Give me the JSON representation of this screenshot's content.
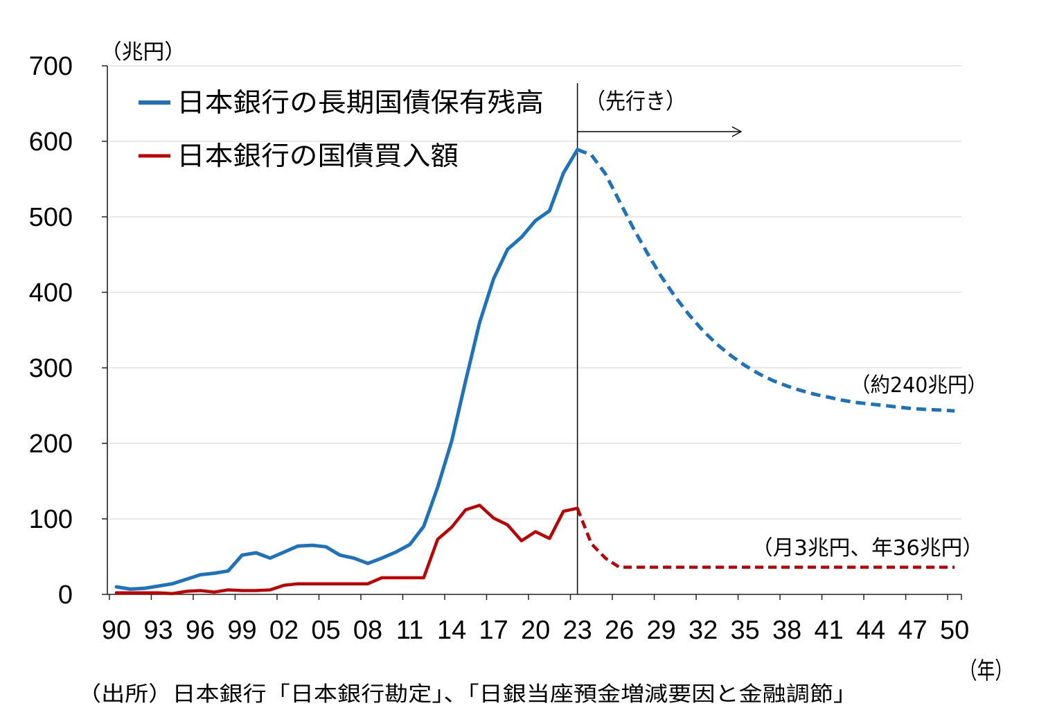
{
  "chart_data": {
    "type": "line",
    "y_axis_label": "（兆円）",
    "x_axis_label": "（年）",
    "ylim": [
      0,
      700
    ],
    "y_ticks": [
      0,
      100,
      200,
      300,
      400,
      500,
      600,
      700
    ],
    "y_tick_labels": [
      "0",
      "100",
      "200",
      "300",
      "400",
      "500",
      "600",
      "700"
    ],
    "x_ticks": [
      1990,
      1993,
      1996,
      1999,
      2002,
      2005,
      2008,
      2011,
      2014,
      2017,
      2020,
      2023,
      2026,
      2029,
      2032,
      2035,
      2038,
      2041,
      2044,
      2047,
      2050
    ],
    "x_tick_labels": [
      "90",
      "93",
      "96",
      "99",
      "02",
      "05",
      "08",
      "11",
      "14",
      "17",
      "20",
      "23",
      "26",
      "29",
      "32",
      "35",
      "38",
      "41",
      "44",
      "47",
      "50"
    ],
    "grid": "horizontal",
    "legend_position": "top-left",
    "forecast_from": 2023,
    "x": [
      1990,
      1991,
      1992,
      1993,
      1994,
      1995,
      1996,
      1997,
      1998,
      1999,
      2000,
      2001,
      2002,
      2003,
      2004,
      2005,
      2006,
      2007,
      2008,
      2009,
      2010,
      2011,
      2012,
      2013,
      2014,
      2015,
      2016,
      2017,
      2018,
      2019,
      2020,
      2021,
      2022,
      2023,
      2024,
      2025,
      2026,
      2027,
      2028,
      2029,
      2030,
      2031,
      2032,
      2033,
      2034,
      2035,
      2036,
      2037,
      2038,
      2039,
      2040,
      2041,
      2042,
      2043,
      2044,
      2045,
      2046,
      2047,
      2048,
      2049,
      2050
    ],
    "series": [
      {
        "name": "日本銀行の長期国債保有残高",
        "color": "#1c72bd",
        "values": [
          10,
          7,
          8,
          11,
          14,
          20,
          26,
          28,
          31,
          52,
          55,
          48,
          56,
          64,
          65,
          63,
          52,
          48,
          41,
          48,
          56,
          66,
          90,
          142,
          203,
          283,
          360,
          418,
          457,
          473,
          495,
          508,
          558,
          589,
          582,
          557,
          521,
          485,
          452,
          421,
          394,
          370,
          349,
          331,
          316,
          303,
          292,
          283,
          276,
          270,
          265,
          261,
          257,
          254,
          252,
          250,
          248,
          246,
          245,
          244,
          243
        ]
      },
      {
        "name": "日本銀行の国債買入額",
        "color": "#c00000",
        "values": [
          2,
          2,
          2,
          2,
          1,
          4,
          5,
          3,
          6,
          5,
          5,
          6,
          12,
          14,
          14,
          14,
          14,
          14,
          14,
          22,
          22,
          22,
          22,
          73,
          89,
          112,
          118,
          101,
          92,
          71,
          83,
          74,
          110,
          114,
          67,
          48,
          36,
          36,
          36,
          36,
          36,
          36,
          36,
          36,
          36,
          36,
          36,
          36,
          36,
          36,
          36,
          36,
          36,
          36,
          36,
          36,
          36,
          36,
          36,
          36,
          36
        ]
      }
    ],
    "annotations": {
      "forecast_label": "（先行き）",
      "holdings_end_label": "（約240兆円）",
      "holdings_end_label_color": "#2f5597",
      "purchases_end_label": "（月3兆円、年36兆円）",
      "purchases_end_label_color": "#c00000"
    }
  },
  "source_note": "（出所）日本銀行「日本銀行勘定」、「日銀当座預金増減要因と金融調節」"
}
